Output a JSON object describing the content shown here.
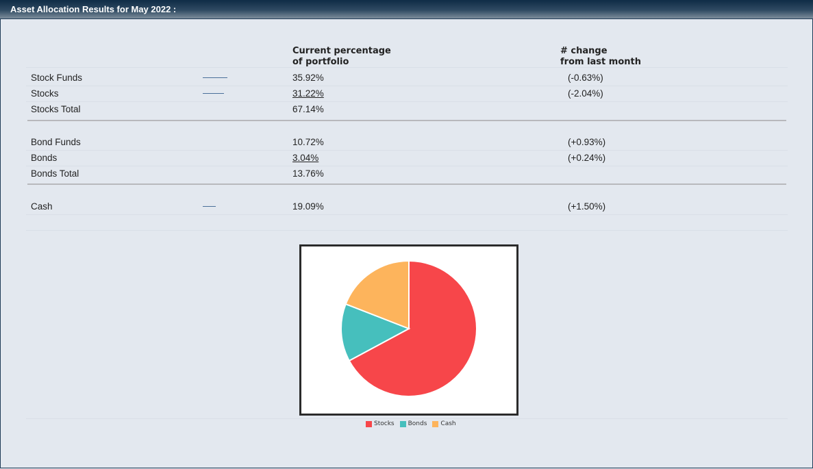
{
  "title": "Asset Allocation Results for May 2022 :",
  "columns": {
    "current_line1": "Current percentage",
    "current_line2": "of portfolio",
    "change_line1": "# change",
    "change_line2": "from last month"
  },
  "groups": [
    {
      "rows": [
        {
          "label": "Stock Funds",
          "pct": "35.92%",
          "change": "(-0.63%)",
          "bar_pct": 35.92,
          "underline": false
        },
        {
          "label": "Stocks",
          "pct": "31.22%",
          "change": "(-2.04%)",
          "bar_pct": 31.22,
          "underline": true
        },
        {
          "label": "Stocks Total",
          "pct": "67.14%",
          "change": "",
          "bar_pct": 0,
          "underline": false
        }
      ]
    },
    {
      "rows": [
        {
          "label": "Bond Funds",
          "pct": "10.72%",
          "change": "(+0.93%)",
          "bar_pct": 0,
          "underline": false
        },
        {
          "label": "Bonds",
          "pct": "3.04%",
          "change": "(+0.24%)",
          "bar_pct": 0,
          "underline": true
        },
        {
          "label": "Bonds Total",
          "pct": "13.76%",
          "change": "",
          "bar_pct": 0,
          "underline": false
        }
      ]
    },
    {
      "rows": [
        {
          "label": "Cash",
          "pct": "19.09%",
          "change": "(+1.50%)",
          "bar_pct": 19.09,
          "underline": false
        }
      ]
    }
  ],
  "chart_data": {
    "type": "pie",
    "categories": [
      "Stocks",
      "Bonds",
      "Cash"
    ],
    "values": [
      67.14,
      13.76,
      19.09
    ],
    "colors": [
      "#f7464a",
      "#46bfbd",
      "#fdb45c"
    ],
    "start": "top",
    "direction": "clockwise",
    "legend": "bottom"
  }
}
